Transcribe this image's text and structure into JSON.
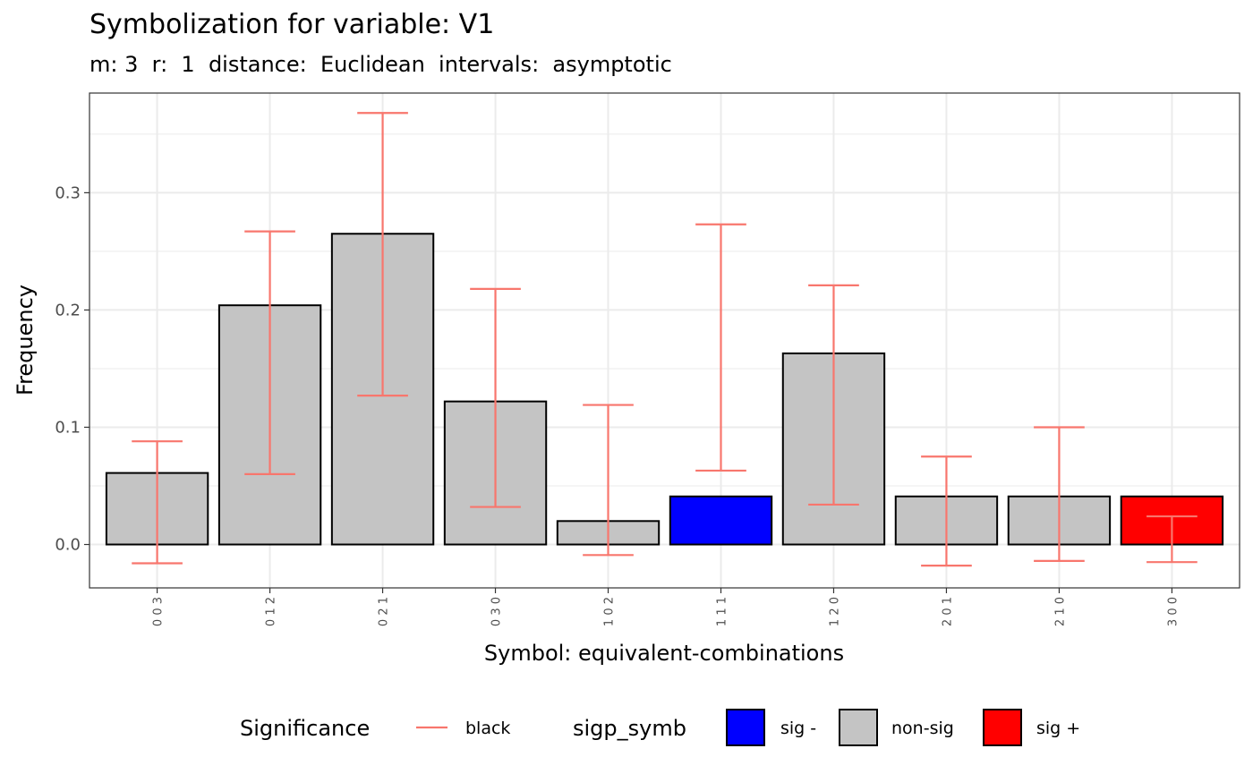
{
  "chart_data": {
    "type": "bar",
    "title": "Symbolization for variable: V1",
    "subtitle": "m: 3  r:  1  distance:  Euclidean  intervals:  asymptotic",
    "xlabel": "Symbol: equivalent-combinations",
    "ylabel": "Frequency",
    "categories": [
      "0 0 3",
      "0 1 2",
      "0 2 1",
      "0 3 0",
      "1 0 2",
      "1 1 1",
      "1 2 0",
      "2 0 1",
      "2 1 0",
      "3 0 0"
    ],
    "values": [
      0.061,
      0.204,
      0.265,
      0.122,
      0.02,
      0.041,
      0.163,
      0.041,
      0.041,
      0.041
    ],
    "ci_lower": [
      -0.016,
      0.06,
      0.127,
      0.032,
      -0.009,
      0.063,
      0.034,
      -0.018,
      -0.014,
      -0.015
    ],
    "ci_upper": [
      0.088,
      0.267,
      0.368,
      0.218,
      0.119,
      0.273,
      0.221,
      0.075,
      0.1,
      0.024
    ],
    "significance": [
      "non-sig",
      "non-sig",
      "non-sig",
      "non-sig",
      "non-sig",
      "sig -",
      "non-sig",
      "non-sig",
      "non-sig",
      "sig +"
    ],
    "ylim": [
      -0.037,
      0.385
    ],
    "yticks": [
      0.0,
      0.1,
      0.2,
      0.3
    ],
    "ytick_labels": [
      "0.0",
      "0.1",
      "0.2",
      "0.3"
    ],
    "grid": true,
    "legend_position": "bottom",
    "errorbar_color": "#F8766D",
    "fill_colors": {
      "sig -": "#0000FF",
      "non-sig": "#C4C4C4",
      "sig +": "#FF0000"
    },
    "legend": {
      "errorbar_title": "Significance",
      "errorbar_label": "black",
      "fill_title": "sigp_symb",
      "fill_labels": [
        "sig -",
        "non-sig",
        "sig +"
      ]
    }
  }
}
